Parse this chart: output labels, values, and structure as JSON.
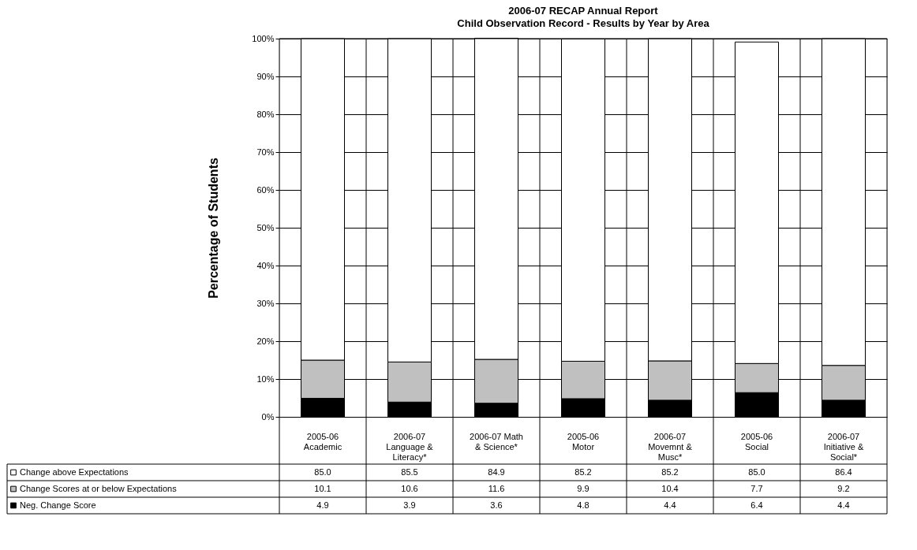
{
  "chart_data": {
    "type": "bar",
    "stacked": true,
    "title": "2006-07 RECAP Annual Report",
    "subtitle": "Child Observation Record - Results by Year by Area",
    "ylabel": "Percentage of Students",
    "categories": [
      "2005-06 Academic",
      "2006-07 Language & Literacy*",
      "2006-07 Math & Science*",
      "2005-06 Motor",
      "2006-07 Movemnt & Musc*",
      "2005-06 Social",
      "2006-07 Initiative & Social*"
    ],
    "series": [
      {
        "name": "Neg. Change Score",
        "color": "#000000",
        "values": [
          4.9,
          3.9,
          3.6,
          4.8,
          4.4,
          6.4,
          4.4
        ],
        "value_labels": [
          "4.9",
          "3.9",
          "3.6",
          "4.8",
          "4.4",
          "6.4",
          "4.4"
        ]
      },
      {
        "name": "Change Scores at or below Expectations",
        "color": "#c0c0c0",
        "values": [
          10.1,
          10.6,
          11.6,
          9.9,
          10.4,
          7.7,
          9.2
        ],
        "value_labels": [
          "10.1",
          "10.6",
          "11.6",
          "9.9",
          "10.4",
          "7.7",
          "9.2"
        ]
      },
      {
        "name": "Change above Expectations",
        "color": "#ffffff",
        "values": [
          85.0,
          85.5,
          84.9,
          85.2,
          85.2,
          85.0,
          86.4
        ],
        "value_labels": [
          "85.0",
          "85.5",
          "84.9",
          "85.2",
          "85.2",
          "85.0",
          "86.4"
        ]
      }
    ],
    "ylim": [
      0,
      100
    ],
    "yticks": [
      {
        "value": 0,
        "label": "0%"
      },
      {
        "value": 10,
        "label": "10%"
      },
      {
        "value": 20,
        "label": "20%"
      },
      {
        "value": 30,
        "label": "30%"
      },
      {
        "value": 40,
        "label": "40%"
      },
      {
        "value": 50,
        "label": "50%"
      },
      {
        "value": 60,
        "label": "60%"
      },
      {
        "value": 70,
        "label": "70%"
      },
      {
        "value": 80,
        "label": "80%"
      },
      {
        "value": 90,
        "label": "90%"
      },
      {
        "value": 100,
        "label": "100%"
      }
    ],
    "grid": true,
    "legend": "bottom"
  }
}
